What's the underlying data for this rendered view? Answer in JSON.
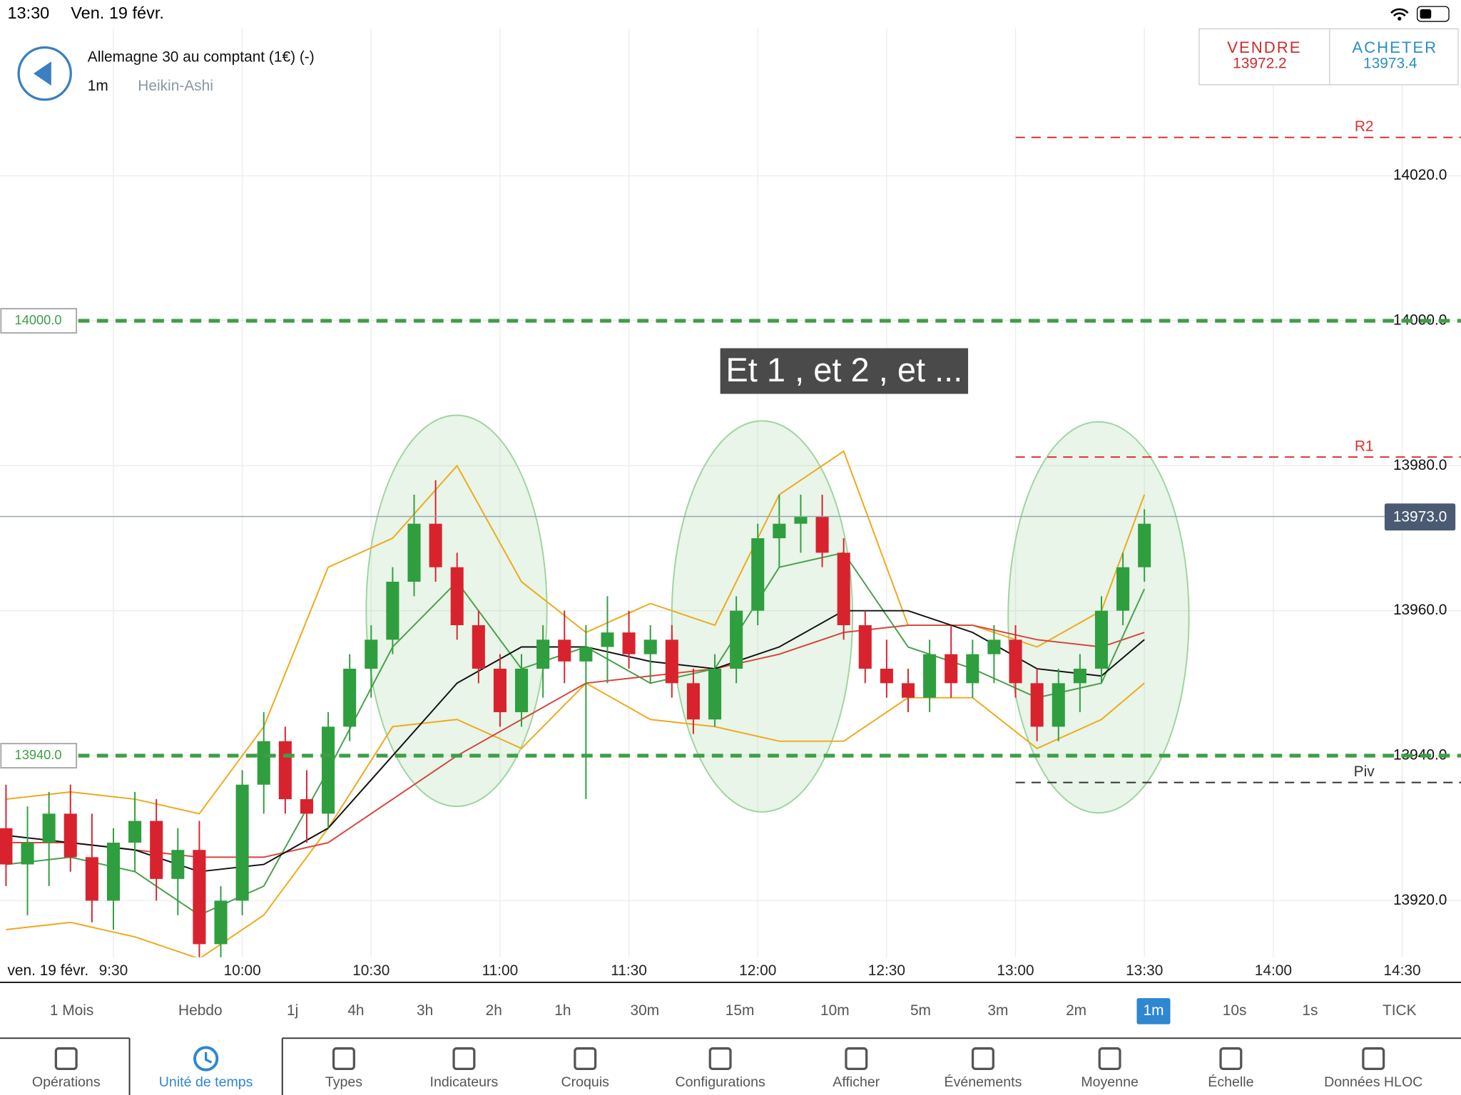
{
  "status_bar": {
    "time": "13:30",
    "date": "Ven. 19 févr."
  },
  "header": {
    "instrument": "Allemagne 30 au comptant (1€) (-)",
    "timeframe": "1m",
    "chart_style": "Heikin-Ashi"
  },
  "quote": {
    "sell_label": "VENDRE",
    "sell_price": "13972.2",
    "buy_label": "ACHETER",
    "buy_price": "13973.4"
  },
  "chart_data": {
    "type": "candlestick",
    "date_label": "ven. 19 févr.",
    "annotation": "Et 1 , et 2 , et ...",
    "up_color": "#2f9e3f",
    "down_color": "#d8232e",
    "grid": true,
    "xlim": [
      543.6,
      883.7
    ],
    "ylim": [
      13912.2,
      14040.4
    ],
    "xticks": [
      {
        "value": 570,
        "label": "9:30"
      },
      {
        "value": 600,
        "label": "10:00"
      },
      {
        "value": 630,
        "label": "10:30"
      },
      {
        "value": 660,
        "label": "11:00"
      },
      {
        "value": 690,
        "label": "11:30"
      },
      {
        "value": 720,
        "label": "12:00"
      },
      {
        "value": 750,
        "label": "12:30"
      },
      {
        "value": 780,
        "label": "13:00"
      },
      {
        "value": 810,
        "label": "13:30"
      },
      {
        "value": 840,
        "label": "14:00"
      },
      {
        "value": 870,
        "label": "14:30"
      }
    ],
    "yticks": [
      {
        "value": 13920,
        "label": "13920.0"
      },
      {
        "value": 13940,
        "label": "13940.0"
      },
      {
        "value": 13960,
        "label": "13960.0"
      },
      {
        "value": 13980,
        "label": "13980.0"
      },
      {
        "value": 14000,
        "label": "14000.0"
      },
      {
        "value": 14020,
        "label": "14020.0"
      }
    ],
    "x": [
      545,
      550,
      555,
      560,
      565,
      570,
      575,
      580,
      585,
      590,
      595,
      600,
      605,
      610,
      615,
      620,
      625,
      630,
      635,
      640,
      645,
      650,
      655,
      660,
      665,
      670,
      675,
      680,
      685,
      690,
      695,
      700,
      705,
      710,
      715,
      720,
      725,
      730,
      735,
      740,
      745,
      750,
      755,
      760,
      765,
      770,
      775,
      780,
      785,
      790,
      795,
      800,
      805,
      810
    ],
    "open": [
      13930,
      13925,
      13928,
      13932,
      13926,
      13920,
      13928,
      13931,
      13923,
      13927,
      13914,
      13920,
      13936,
      13942,
      13934,
      13932,
      13944,
      13952,
      13956,
      13964,
      13972,
      13966,
      13958,
      13952,
      13946,
      13952,
      13956,
      13953,
      13955,
      13957,
      13954,
      13956,
      13950,
      13945,
      13952,
      13960,
      13970,
      13972,
      13973,
      13968,
      13958,
      13952,
      13950,
      13948,
      13954,
      13950,
      13954,
      13956,
      13950,
      13944,
      13950,
      13952,
      13960,
      13966
    ],
    "high": [
      13936,
      13933,
      13935,
      13936,
      13932,
      13930,
      13935,
      13934,
      13930,
      13931,
      13922,
      13938,
      13946,
      13944,
      13938,
      13946,
      13954,
      13958,
      13966,
      13976,
      13978,
      13968,
      13960,
      13954,
      13954,
      13958,
      13960,
      13958,
      13962,
      13960,
      13958,
      13958,
      13952,
      13954,
      13962,
      13972,
      13976,
      13976,
      13976,
      13970,
      13960,
      13956,
      13952,
      13956,
      13958,
      13956,
      13958,
      13958,
      13952,
      13952,
      13954,
      13962,
      13968,
      13974
    ],
    "low": [
      13922,
      13918,
      13922,
      13924,
      13917,
      13916,
      13924,
      13920,
      13918,
      13912,
      13912,
      13918,
      13932,
      13932,
      13928,
      13930,
      13942,
      13948,
      13954,
      13962,
      13964,
      13956,
      13950,
      13944,
      13944,
      13948,
      13950,
      13934,
      13950,
      13952,
      13950,
      13948,
      13943,
      13944,
      13950,
      13958,
      13966,
      13968,
      13966,
      13956,
      13950,
      13948,
      13946,
      13946,
      13948,
      13948,
      13950,
      13948,
      13942,
      13942,
      13946,
      13950,
      13958,
      13964
    ],
    "close": [
      13925,
      13928,
      13932,
      13926,
      13920,
      13928,
      13931,
      13923,
      13927,
      13914,
      13920,
      13936,
      13942,
      13934,
      13932,
      13944,
      13952,
      13956,
      13964,
      13972,
      13966,
      13958,
      13952,
      13946,
      13952,
      13956,
      13953,
      13955,
      13957,
      13954,
      13956,
      13950,
      13945,
      13952,
      13960,
      13970,
      13972,
      13973,
      13968,
      13958,
      13952,
      13950,
      13948,
      13954,
      13950,
      13954,
      13956,
      13950,
      13944,
      13950,
      13952,
      13960,
      13966,
      13972
    ],
    "indicators": {
      "x": [
        545,
        560,
        575,
        590,
        605,
        620,
        635,
        650,
        665,
        680,
        695,
        710,
        725,
        740,
        755,
        770,
        785,
        800,
        810
      ],
      "series": [
        {
          "color": "#f0a818",
          "values": [
            13934,
            13935,
            13934,
            13932,
            13944,
            13966,
            13970,
            13980,
            13964,
            13957,
            13961,
            13958,
            13976,
            13982,
            13958,
            13958,
            13955,
            13960,
            13976
          ]
        },
        {
          "color": "#f0a818",
          "values": [
            13916,
            13917,
            13915,
            13912,
            13918,
            13930,
            13944,
            13945,
            13941,
            13950,
            13945,
            13944,
            13942,
            13942,
            13948,
            13948,
            13941,
            13945,
            13950
          ]
        },
        {
          "color": "#d8443c",
          "values": [
            13928,
            13928,
            13927,
            13926,
            13926,
            13928,
            13934,
            13940,
            13945,
            13950,
            13951,
            13952,
            13954,
            13957,
            13958,
            13958,
            13956,
            13955,
            13957
          ]
        },
        {
          "color": "#4a9e4a",
          "values": [
            13925,
            13926,
            13924,
            13918,
            13922,
            13938,
            13955,
            13964,
            13952,
            13955,
            13950,
            13952,
            13966,
            13968,
            13955,
            13952,
            13948,
            13950,
            13963
          ]
        },
        {
          "color": "#111111",
          "values": [
            13929,
            13928,
            13927,
            13924,
            13925,
            13930,
            13940,
            13950,
            13955,
            13955,
            13953,
            13952,
            13955,
            13960,
            13960,
            13957,
            13952,
            13951,
            13956
          ]
        }
      ]
    },
    "support_lines": [
      {
        "value": 14000,
        "label": "14000.0"
      },
      {
        "value": 13940,
        "label": "13940.0"
      }
    ],
    "pivots": [
      {
        "name": "R2",
        "value": 14025.3,
        "color": "#e03030"
      },
      {
        "name": "R1",
        "value": 13981.2,
        "color": "#e03030"
      },
      {
        "name": "Piv",
        "value": 13936.3,
        "color": "#333333"
      }
    ],
    "current_price": {
      "value": 13973,
      "label": "13973.0"
    }
  },
  "timeframes": {
    "items": [
      "1 Mois",
      "Hebdo",
      "1j",
      "4h",
      "3h",
      "2h",
      "1h",
      "30m",
      "15m",
      "10m",
      "5m",
      "3m",
      "2m",
      "1m",
      "10s",
      "1s",
      "TICK"
    ],
    "selected": "1m"
  },
  "toolbar": {
    "items": [
      "Opérations",
      "Unité de temps",
      "Types",
      "Indicateurs",
      "Croquis",
      "Configurations",
      "Afficher",
      "Événements",
      "Moyenne",
      "Échelle",
      "Données HLOC"
    ],
    "selected": "Unité de temps"
  }
}
